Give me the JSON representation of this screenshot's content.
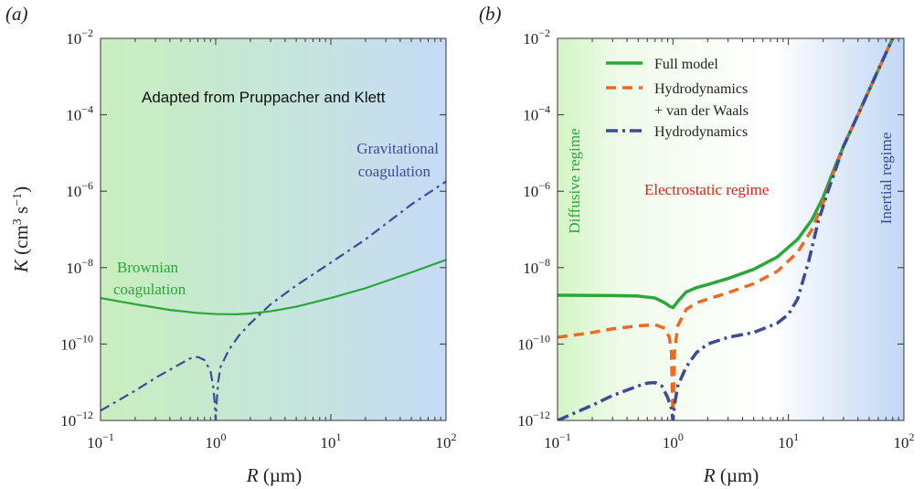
{
  "chart_data": [
    {
      "panel_label": "(a)",
      "type": "line",
      "xscale": "log",
      "yscale": "log",
      "xlim": [
        0.1,
        100
      ],
      "ylim": [
        1e-12,
        0.01
      ],
      "xlabel": "R (µm)",
      "ylabel": "K (cm3 s−1)",
      "xticks": [
        0.1,
        1,
        10,
        100
      ],
      "yticks": [
        1e-12,
        1e-10,
        1e-08,
        1e-06,
        0.0001,
        0.01
      ],
      "background_gradient": [
        "#c8efbd",
        "#c4dcf6"
      ],
      "annotations": [
        {
          "text": "Adapted from Pruppacher and Klett",
          "color": "#111111"
        },
        {
          "text": "Gravitational",
          "color": "#3d4a9a"
        },
        {
          "text": "coagulation",
          "color": "#3d4a9a"
        },
        {
          "text": "Brownian",
          "color": "#2aa63a"
        },
        {
          "text": "coagulation",
          "color": "#2aa63a"
        }
      ],
      "series": [
        {
          "style": "solid",
          "color": "#2aa63a",
          "points": [
            [
              0.1,
              1.6e-09
            ],
            [
              0.2,
              1.1e-09
            ],
            [
              0.4,
              7.8e-10
            ],
            [
              0.7,
              6.5e-10
            ],
            [
              1.0,
              6.1e-10
            ],
            [
              1.5,
              6e-10
            ],
            [
              2.0,
              6.3e-10
            ],
            [
              3.0,
              7.2e-10
            ],
            [
              5.0,
              9.5e-10
            ],
            [
              10,
              1.6e-09
            ],
            [
              20,
              2.9e-09
            ],
            [
              50,
              7.5e-09
            ],
            [
              100,
              1.6e-08
            ]
          ]
        },
        {
          "style": "dashdot",
          "color": "#3d4a9a",
          "points": [
            [
              0.1,
              1.8e-12
            ],
            [
              0.2,
              6e-12
            ],
            [
              0.3,
              1.3e-11
            ],
            [
              0.5,
              3.1e-11
            ],
            [
              0.6,
              4.2e-11
            ],
            [
              0.7,
              4.6e-11
            ],
            [
              0.8,
              3.8e-11
            ],
            [
              0.9,
              2e-11
            ],
            [
              0.95,
              8e-12
            ],
            [
              0.98,
              3e-12
            ],
            [
              1.0,
              1e-12
            ],
            [
              1.02,
              3e-12
            ],
            [
              1.05,
              1e-11
            ],
            [
              1.1,
              2.5e-11
            ],
            [
              1.3,
              7e-11
            ],
            [
              1.6,
              1.7e-10
            ],
            [
              2.0,
              3.5e-10
            ],
            [
              3.0,
              1.1e-09
            ],
            [
              5.0,
              3.4e-09
            ],
            [
              10,
              1.35e-08
            ],
            [
              20,
              5.5e-08
            ],
            [
              50,
              4.5e-07
            ],
            [
              100,
              1.8e-06
            ]
          ]
        }
      ]
    },
    {
      "panel_label": "(b)",
      "type": "line",
      "xscale": "log",
      "yscale": "log",
      "xlim": [
        0.1,
        100
      ],
      "ylim": [
        1e-12,
        0.01
      ],
      "xlabel": "R (µm)",
      "xticks": [
        0.1,
        1,
        10,
        100
      ],
      "yticks": [
        1e-12,
        1e-10,
        1e-08,
        1e-06,
        0.0001,
        0.01
      ],
      "background_gradient": [
        "#d3f5c6",
        "#ffffff",
        "#c2d8f6"
      ],
      "annotations": [
        {
          "text": "Diffusive regime",
          "color": "#2aa63a",
          "orientation": "vertical"
        },
        {
          "text": "Electrostatic regime",
          "color": "#e02020"
        },
        {
          "text": "Inertial regime",
          "color": "#3d4a9a",
          "orientation": "vertical"
        }
      ],
      "legend": {
        "placement": "top-center"
      },
      "series": [
        {
          "name": "Full model",
          "style": "solid",
          "color": "#2aa63a",
          "points": [
            [
              0.1,
              1.9e-09
            ],
            [
              0.3,
              1.85e-09
            ],
            [
              0.5,
              1.8e-09
            ],
            [
              0.7,
              1.6e-09
            ],
            [
              0.85,
              1.2e-09
            ],
            [
              0.95,
              9.5e-10
            ],
            [
              1.0,
              9e-10
            ],
            [
              1.1,
              1.3e-09
            ],
            [
              1.3,
              2.3e-09
            ],
            [
              1.6,
              3e-09
            ],
            [
              2.0,
              3.6e-09
            ],
            [
              3.0,
              5.2e-09
            ],
            [
              5.0,
              9e-09
            ],
            [
              8.0,
              1.9e-08
            ],
            [
              12,
              5.5e-08
            ],
            [
              16,
              1.8e-07
            ],
            [
              20,
              7e-07
            ],
            [
              25,
              4e-06
            ],
            [
              30,
              1.5e-05
            ],
            [
              40,
              0.0001
            ],
            [
              60,
              0.0015
            ],
            [
              80,
              0.01
            ]
          ]
        },
        {
          "name": "Hydrodynamics",
          "name_line2": "+ van der Waals",
          "style": "dashed",
          "color": "#ee6a24",
          "points": [
            [
              0.1,
              1.5e-10
            ],
            [
              0.2,
              2e-10
            ],
            [
              0.3,
              2.5e-10
            ],
            [
              0.5,
              3e-10
            ],
            [
              0.7,
              3.2e-10
            ],
            [
              0.85,
              2.6e-10
            ],
            [
              0.93,
              1.5e-10
            ],
            [
              0.97,
              6e-11
            ],
            [
              1.0,
              1e-12
            ],
            [
              1.03,
              6e-11
            ],
            [
              1.1,
              3e-10
            ],
            [
              1.3,
              8e-10
            ],
            [
              1.6,
              1.2e-09
            ],
            [
              2.0,
              1.5e-09
            ],
            [
              3.0,
              2.2e-09
            ],
            [
              5.0,
              3.8e-09
            ],
            [
              8.0,
              8e-09
            ],
            [
              12,
              2.5e-08
            ],
            [
              16,
              1e-07
            ],
            [
              20,
              5e-07
            ],
            [
              25,
              3.5e-06
            ],
            [
              30,
              1.5e-05
            ],
            [
              40,
              0.0001
            ],
            [
              60,
              0.0015
            ],
            [
              80,
              0.01
            ]
          ]
        },
        {
          "name": "Hydrodynamics",
          "style": "dashdot",
          "color": "#3d4a9a",
          "points": [
            [
              0.1,
              1e-12
            ],
            [
              0.2,
              2.5e-12
            ],
            [
              0.3,
              4.5e-12
            ],
            [
              0.5,
              8e-12
            ],
            [
              0.6,
              9.5e-12
            ],
            [
              0.7,
              9.8e-12
            ],
            [
              0.8,
              8e-12
            ],
            [
              0.9,
              4e-12
            ],
            [
              0.97,
              2e-12
            ],
            [
              1.0,
              1e-12
            ],
            [
              1.03,
              2.5e-12
            ],
            [
              1.1,
              8e-12
            ],
            [
              1.3,
              2.5e-11
            ],
            [
              1.6,
              6e-11
            ],
            [
              2.0,
              1e-10
            ],
            [
              3.0,
              1.5e-10
            ],
            [
              5.0,
              2e-10
            ],
            [
              8.0,
              3.5e-10
            ],
            [
              10,
              6e-10
            ],
            [
              12,
              1.5e-09
            ],
            [
              15,
              1.5e-08
            ],
            [
              18,
              1.5e-07
            ],
            [
              22,
              1e-06
            ],
            [
              25,
              3e-06
            ],
            [
              30,
              1.5e-05
            ],
            [
              40,
              0.0001
            ],
            [
              60,
              0.0015
            ],
            [
              80,
              0.01
            ]
          ]
        }
      ]
    }
  ]
}
